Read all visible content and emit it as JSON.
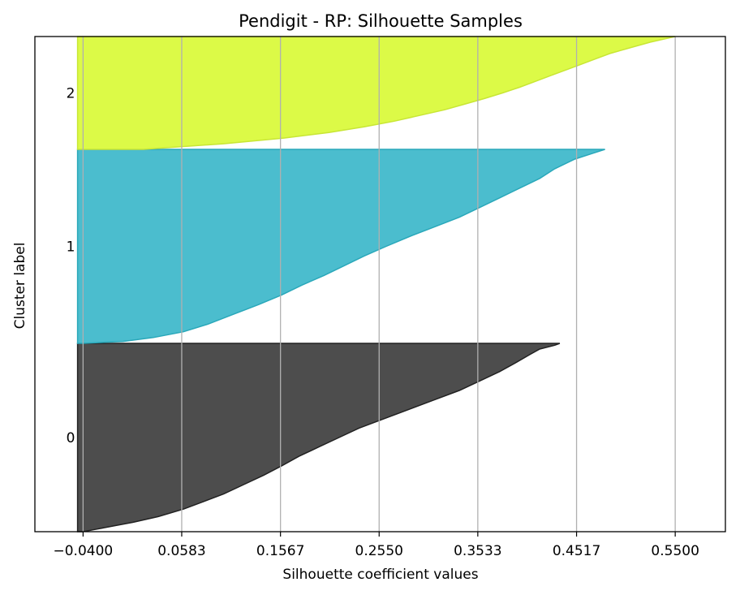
{
  "chart_data": {
    "type": "area",
    "title": "Pendigit - RP: Silhouette Samples",
    "xlabel": "Silhouette coefficient values",
    "ylabel": "Cluster label",
    "xlim": [
      -0.088,
      0.6
    ],
    "xticks": [
      -0.04,
      0.0583,
      0.1567,
      0.255,
      0.3533,
      0.4517,
      0.55
    ],
    "xtick_labels": [
      "−0.0400",
      "0.0583",
      "0.1567",
      "0.2550",
      "0.3533",
      "0.4517",
      "0.5500"
    ],
    "grid": "x",
    "clusters": [
      {
        "label": "0",
        "color": "#4d4d4d",
        "edge_color": "#222222",
        "samples": [
          [
            0.0,
            -0.04
          ],
          [
            0.01,
            -0.03
          ],
          [
            0.03,
            -0.01
          ],
          [
            0.05,
            0.01
          ],
          [
            0.08,
            0.035
          ],
          [
            0.12,
            0.06
          ],
          [
            0.16,
            0.08
          ],
          [
            0.2,
            0.1
          ],
          [
            0.25,
            0.12
          ],
          [
            0.3,
            0.14
          ],
          [
            0.35,
            0.158
          ],
          [
            0.4,
            0.175
          ],
          [
            0.45,
            0.195
          ],
          [
            0.5,
            0.215
          ],
          [
            0.55,
            0.235
          ],
          [
            0.6,
            0.26
          ],
          [
            0.65,
            0.285
          ],
          [
            0.7,
            0.31
          ],
          [
            0.75,
            0.335
          ],
          [
            0.8,
            0.355
          ],
          [
            0.85,
            0.375
          ],
          [
            0.9,
            0.392
          ],
          [
            0.94,
            0.405
          ],
          [
            0.97,
            0.415
          ],
          [
            0.99,
            0.43
          ],
          [
            1.0,
            0.435
          ]
        ]
      },
      {
        "label": "1",
        "color": "#4bbdce",
        "edge_color": "#2aa8ba",
        "samples": [
          [
            0.0,
            -0.04
          ],
          [
            0.01,
            0.0
          ],
          [
            0.03,
            0.03
          ],
          [
            0.06,
            0.06
          ],
          [
            0.1,
            0.085
          ],
          [
            0.15,
            0.11
          ],
          [
            0.2,
            0.135
          ],
          [
            0.25,
            0.158
          ],
          [
            0.3,
            0.178
          ],
          [
            0.35,
            0.2
          ],
          [
            0.4,
            0.22
          ],
          [
            0.45,
            0.24
          ],
          [
            0.5,
            0.262
          ],
          [
            0.55,
            0.285
          ],
          [
            0.6,
            0.31
          ],
          [
            0.65,
            0.335
          ],
          [
            0.7,
            0.355
          ],
          [
            0.75,
            0.375
          ],
          [
            0.8,
            0.395
          ],
          [
            0.85,
            0.415
          ],
          [
            0.9,
            0.43
          ],
          [
            0.95,
            0.45
          ],
          [
            0.98,
            0.468
          ],
          [
            1.0,
            0.48
          ]
        ]
      },
      {
        "label": "2",
        "color": "#dcfa47",
        "edge_color": "#c8e635",
        "samples": [
          [
            0.0,
            0.02
          ],
          [
            0.05,
            0.1
          ],
          [
            0.1,
            0.16
          ],
          [
            0.15,
            0.205
          ],
          [
            0.2,
            0.24
          ],
          [
            0.25,
            0.27
          ],
          [
            0.3,
            0.295
          ],
          [
            0.35,
            0.32
          ],
          [
            0.4,
            0.34
          ],
          [
            0.45,
            0.36
          ],
          [
            0.5,
            0.378
          ],
          [
            0.55,
            0.395
          ],
          [
            0.6,
            0.41
          ],
          [
            0.65,
            0.425
          ],
          [
            0.7,
            0.44
          ],
          [
            0.75,
            0.455
          ],
          [
            0.8,
            0.47
          ],
          [
            0.85,
            0.485
          ],
          [
            0.9,
            0.505
          ],
          [
            0.95,
            0.525
          ],
          [
            0.98,
            0.54
          ],
          [
            1.0,
            0.55
          ]
        ]
      }
    ]
  }
}
